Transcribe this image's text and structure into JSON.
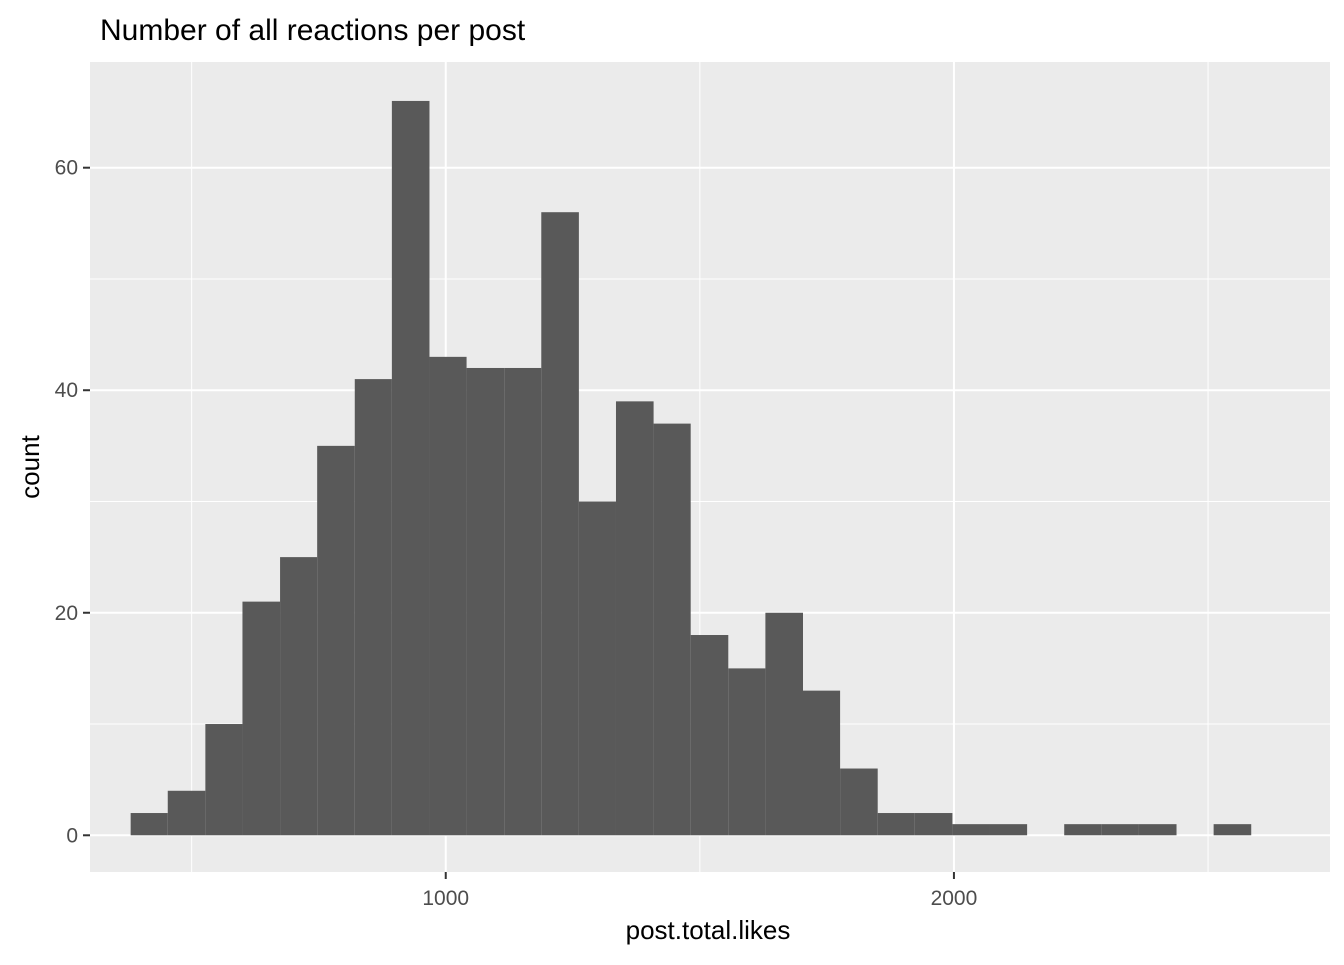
{
  "chart_data": {
    "type": "bar",
    "title": "Number of all reactions per post",
    "xlabel": "post.total.likes",
    "ylabel": "count",
    "xlim": [
      300,
      2740
    ],
    "ylim": [
      -3.3,
      69.5
    ],
    "x_ticks": [
      1000,
      2000
    ],
    "x_tick_labels": [
      "1000",
      "2000"
    ],
    "x_minor_ticks": [
      500,
      1500,
      2500
    ],
    "y_ticks": [
      0,
      20,
      40,
      60
    ],
    "y_tick_labels": [
      "0",
      "20",
      "40",
      "60"
    ],
    "y_minor_ticks": [
      10,
      30,
      50
    ],
    "grid": true,
    "panel_background": "#ebebeb",
    "grid_color": "#ffffff",
    "bar_color": "#595959",
    "bins": [
      {
        "x0": 380,
        "x1": 453,
        "count": 2
      },
      {
        "x0": 453,
        "x1": 527,
        "count": 4
      },
      {
        "x0": 527,
        "x1": 600,
        "count": 10
      },
      {
        "x0": 600,
        "x1": 674,
        "count": 21
      },
      {
        "x0": 674,
        "x1": 747,
        "count": 25
      },
      {
        "x0": 747,
        "x1": 821,
        "count": 35
      },
      {
        "x0": 821,
        "x1": 894,
        "count": 41
      },
      {
        "x0": 894,
        "x1": 968,
        "count": 66
      },
      {
        "x0": 968,
        "x1": 1041,
        "count": 43
      },
      {
        "x0": 1041,
        "x1": 1115,
        "count": 42
      },
      {
        "x0": 1115,
        "x1": 1188,
        "count": 42
      },
      {
        "x0": 1188,
        "x1": 1262,
        "count": 56
      },
      {
        "x0": 1262,
        "x1": 1335,
        "count": 30
      },
      {
        "x0": 1335,
        "x1": 1409,
        "count": 39
      },
      {
        "x0": 1409,
        "x1": 1482,
        "count": 37
      },
      {
        "x0": 1482,
        "x1": 1556,
        "count": 18
      },
      {
        "x0": 1556,
        "x1": 1629,
        "count": 15
      },
      {
        "x0": 1629,
        "x1": 1703,
        "count": 20
      },
      {
        "x0": 1703,
        "x1": 1776,
        "count": 13
      },
      {
        "x0": 1776,
        "x1": 1850,
        "count": 6
      },
      {
        "x0": 1850,
        "x1": 1923,
        "count": 2
      },
      {
        "x0": 1923,
        "x1": 1997,
        "count": 2
      },
      {
        "x0": 1997,
        "x1": 2070,
        "count": 1
      },
      {
        "x0": 2070,
        "x1": 2144,
        "count": 1
      },
      {
        "x0": 2144,
        "x1": 2217,
        "count": 0
      },
      {
        "x0": 2217,
        "x1": 2291,
        "count": 1
      },
      {
        "x0": 2291,
        "x1": 2364,
        "count": 1
      },
      {
        "x0": 2364,
        "x1": 2438,
        "count": 1
      },
      {
        "x0": 2438,
        "x1": 2511,
        "count": 0
      },
      {
        "x0": 2511,
        "x1": 2585,
        "count": 1
      }
    ]
  }
}
